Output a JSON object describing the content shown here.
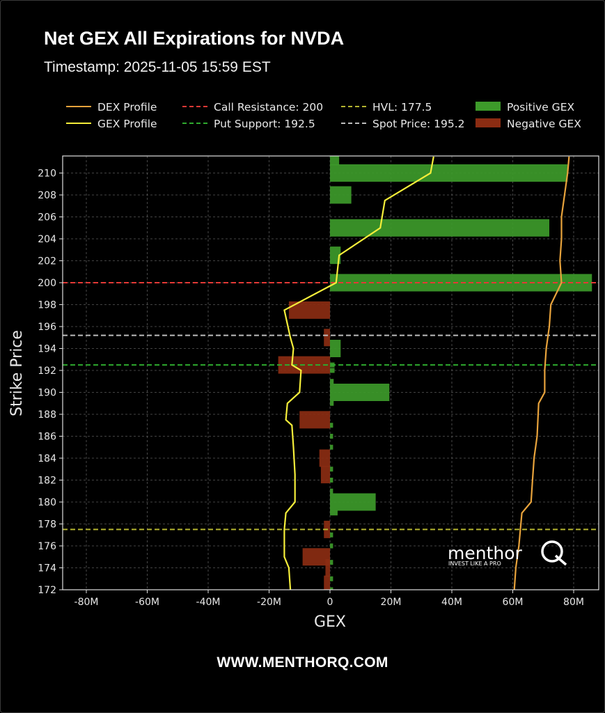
{
  "header": {
    "title": "Net GEX All Expirations for NVDA",
    "timestamp": "Timestamp: 2025-11-05 15:59 EST"
  },
  "footer": {
    "url": "WWW.MENTHORQ.COM"
  },
  "brand": {
    "name": "menthor",
    "mark": "Q",
    "tagline": "INVEST LIKE A PRO"
  },
  "chart_data": {
    "type": "bar",
    "orientation": "horizontal",
    "title": "Net GEX All Expirations for NVDA",
    "xlabel": "GEX",
    "ylabel": "Strike Price",
    "xlim": [
      -88,
      87
    ],
    "ylim": [
      172,
      211.5
    ],
    "xticks": [
      -80,
      -60,
      -40,
      -20,
      0,
      20,
      40,
      60,
      80
    ],
    "xtick_labels": [
      "-80M",
      "-60M",
      "-40M",
      "-20M",
      "0",
      "20M",
      "40M",
      "60M",
      "80M"
    ],
    "yticks": [
      172,
      174,
      176,
      178,
      180,
      182,
      184,
      186,
      188,
      190,
      192,
      194,
      196,
      198,
      200,
      202,
      204,
      206,
      208,
      210
    ],
    "grid": true,
    "legend_position": "top",
    "colors": {
      "positive": "#3d9a2a",
      "negative": "#8b2c12",
      "dex": "#e8a33c",
      "gex": "#f5ee3a",
      "call_resistance": "#e53935",
      "put_support": "#2eaa2e",
      "hvl": "#b5b530",
      "spot": "#bdbdbd"
    },
    "legend": [
      {
        "label": "DEX Profile",
        "kind": "line",
        "color": "#e8a33c"
      },
      {
        "label": "GEX Profile",
        "kind": "line",
        "color": "#f5ee3a"
      },
      {
        "label": "Call Resistance: 200",
        "kind": "dash",
        "color": "#e53935"
      },
      {
        "label": "Put Support: 192.5",
        "kind": "dash",
        "color": "#2eaa2e"
      },
      {
        "label": "HVL: 177.5",
        "kind": "dash",
        "color": "#b5b530"
      },
      {
        "label": "Spot Price: 195.2",
        "kind": "dash",
        "color": "#bdbdbd"
      },
      {
        "label": "Positive GEX",
        "kind": "patch",
        "color": "#3d9a2a"
      },
      {
        "label": "Negative GEX",
        "kind": "patch",
        "color": "#8b2c12"
      }
    ],
    "levels": [
      {
        "name": "Call Resistance",
        "value": 200,
        "color": "#e53935"
      },
      {
        "name": "Put Support",
        "value": 192.5,
        "color": "#2eaa2e"
      },
      {
        "name": "HVL",
        "value": 177.5,
        "color": "#b5b530"
      },
      {
        "name": "Spot Price",
        "value": 195.2,
        "color": "#bdbdbd"
      }
    ],
    "bars": [
      {
        "strike": 211.5,
        "value": 3
      },
      {
        "strike": 210,
        "value": 78
      },
      {
        "strike": 208,
        "value": 7
      },
      {
        "strike": 205,
        "value": 72
      },
      {
        "strike": 202.5,
        "value": 3.5
      },
      {
        "strike": 200,
        "value": 86
      },
      {
        "strike": 197.5,
        "value": -13.5
      },
      {
        "strike": 195,
        "value": -2
      },
      {
        "strike": 194,
        "value": 3.5
      },
      {
        "strike": 192.5,
        "value": -17
      },
      {
        "strike": 192.5,
        "value": 1.5
      },
      {
        "strike": 192,
        "value": 1.5
      },
      {
        "strike": 191,
        "value": 1.2
      },
      {
        "strike": 190,
        "value": 19.5
      },
      {
        "strike": 189,
        "value": 1.2
      },
      {
        "strike": 187.5,
        "value": -10
      },
      {
        "strike": 187,
        "value": 1
      },
      {
        "strike": 186,
        "value": 1
      },
      {
        "strike": 185,
        "value": 1
      },
      {
        "strike": 184,
        "value": -3.5
      },
      {
        "strike": 183,
        "value": 1
      },
      {
        "strike": 182.5,
        "value": -3
      },
      {
        "strike": 182,
        "value": 1
      },
      {
        "strike": 181,
        "value": 1
      },
      {
        "strike": 180,
        "value": 15
      },
      {
        "strike": 179,
        "value": 2.5
      },
      {
        "strike": 177.5,
        "value": -2
      },
      {
        "strike": 177,
        "value": 1
      },
      {
        "strike": 176,
        "value": 1
      },
      {
        "strike": 175,
        "value": -9
      },
      {
        "strike": 174.5,
        "value": 1
      },
      {
        "strike": 174,
        "value": -1.5
      },
      {
        "strike": 173,
        "value": 1
      },
      {
        "strike": 172.5,
        "value": -2
      },
      {
        "strike": 172,
        "value": 1
      }
    ],
    "dex_profile": [
      {
        "strike": 211.5,
        "value": 78.5
      },
      {
        "strike": 210,
        "value": 78
      },
      {
        "strike": 208,
        "value": 77
      },
      {
        "strike": 206,
        "value": 76
      },
      {
        "strike": 204,
        "value": 76
      },
      {
        "strike": 202,
        "value": 75.5
      },
      {
        "strike": 200,
        "value": 76
      },
      {
        "strike": 198,
        "value": 72.5
      },
      {
        "strike": 196,
        "value": 72
      },
      {
        "strike": 194,
        "value": 71
      },
      {
        "strike": 192,
        "value": 70.5
      },
      {
        "strike": 190,
        "value": 70.5
      },
      {
        "strike": 189,
        "value": 68.5
      },
      {
        "strike": 186,
        "value": 68
      },
      {
        "strike": 184,
        "value": 67
      },
      {
        "strike": 182,
        "value": 66.5
      },
      {
        "strike": 180,
        "value": 66
      },
      {
        "strike": 179,
        "value": 63
      },
      {
        "strike": 176,
        "value": 62
      },
      {
        "strike": 174,
        "value": 61
      },
      {
        "strike": 172,
        "value": 60.5
      }
    ],
    "gex_profile": [
      {
        "strike": 211.5,
        "value": 34
      },
      {
        "strike": 210,
        "value": 33
      },
      {
        "strike": 207.5,
        "value": 18
      },
      {
        "strike": 205,
        "value": 16.5
      },
      {
        "strike": 202.5,
        "value": 3
      },
      {
        "strike": 200,
        "value": 2
      },
      {
        "strike": 197.5,
        "value": -15
      },
      {
        "strike": 195,
        "value": -13
      },
      {
        "strike": 194,
        "value": -12
      },
      {
        "strike": 192.5,
        "value": -12.5
      },
      {
        "strike": 192,
        "value": -9.5
      },
      {
        "strike": 190,
        "value": -10
      },
      {
        "strike": 189,
        "value": -14
      },
      {
        "strike": 187.5,
        "value": -14.5
      },
      {
        "strike": 187,
        "value": -12.5
      },
      {
        "strike": 185,
        "value": -12
      },
      {
        "strike": 182.5,
        "value": -11.5
      },
      {
        "strike": 182,
        "value": -11.5
      },
      {
        "strike": 180,
        "value": -11.5
      },
      {
        "strike": 179,
        "value": -14.5
      },
      {
        "strike": 177.5,
        "value": -15
      },
      {
        "strike": 175,
        "value": -15
      },
      {
        "strike": 174,
        "value": -13.5
      },
      {
        "strike": 172,
        "value": -13
      }
    ]
  }
}
